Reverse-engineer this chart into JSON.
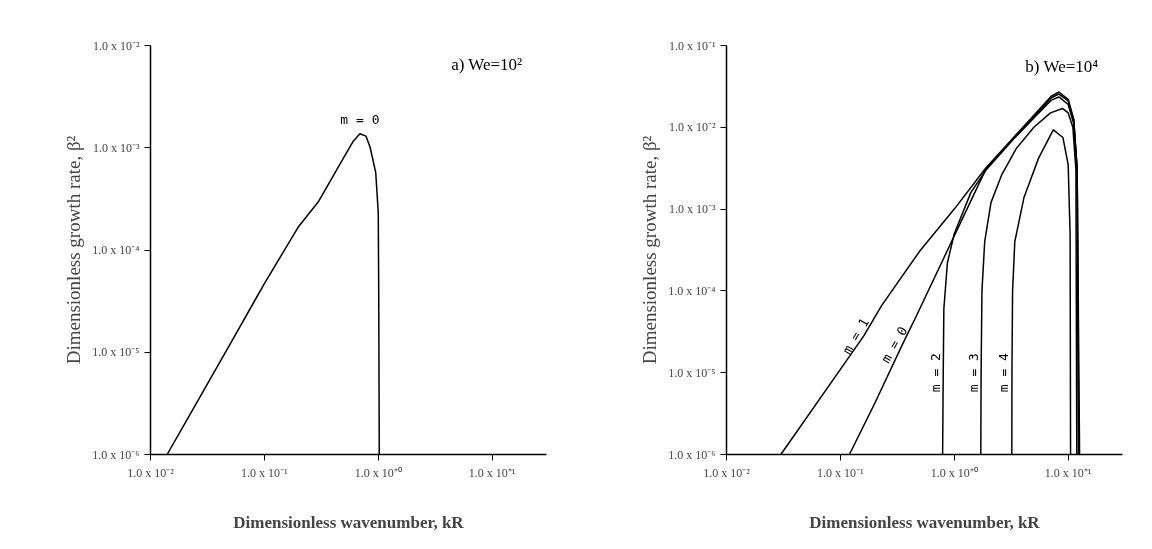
{
  "chart_data": [
    {
      "type": "line",
      "title": "a) We=10²",
      "xlabel": "Dimensionless wavenumber, kR",
      "ylabel": "Dimensionless growth rate, β²",
      "log": "xy",
      "grid": false,
      "line_style": "solid",
      "marker": "none",
      "xlim": [
        0.01,
        30
      ],
      "ylim": [
        1e-06,
        0.01
      ],
      "xticks": [
        {
          "value": 0.01,
          "label": "1.0 x 10⁻²"
        },
        {
          "value": 0.1,
          "label": "1.0 x 10⁻¹"
        },
        {
          "value": 1,
          "label": "1.0 x 10⁺⁰"
        },
        {
          "value": 10,
          "label": "1.0 x 10⁺¹"
        }
      ],
      "yticks": [
        {
          "value": 1e-06,
          "label": "1.0 x 10⁻⁶"
        },
        {
          "value": 1e-05,
          "label": "1.0 x 10⁻⁵"
        },
        {
          "value": 0.0001,
          "label": "1.0 x 10⁻⁴"
        },
        {
          "value": 0.001,
          "label": "1.0 x 10⁻³"
        },
        {
          "value": 0.01,
          "label": "1.0 x 10⁻²"
        }
      ],
      "series": [
        {
          "color": "#000000",
          "x": [
            0.014,
            0.02,
            0.05,
            0.1,
            0.2,
            0.3,
            0.5,
            0.6,
            0.69,
            0.78,
            0.85,
            0.95,
            1.0,
            1.01,
            1.02
          ],
          "values": [
            1e-06,
            2e-06,
            1.2e-05,
            4.7e-05,
            0.00017,
            0.0003,
            0.00081,
            0.00115,
            0.00137,
            0.0013,
            0.001,
            0.00057,
            0.00023,
            3e-05,
            1e-06
          ]
        }
      ],
      "annotations": [
        {
          "text": "m = 0",
          "x": 0.69,
          "y": 0.00137
        }
      ]
    },
    {
      "type": "line",
      "title": "b) We=10⁴",
      "xlabel": "Dimensionless wavenumber, kR",
      "ylabel": "Dimensionless growth rate, β²",
      "log": "xy",
      "grid": false,
      "line_style": "solid",
      "marker": "none",
      "xlim": [
        0.01,
        30
      ],
      "ylim": [
        1e-06,
        0.1
      ],
      "xticks": [
        {
          "value": 0.01,
          "label": "1.0 x 10⁻²"
        },
        {
          "value": 0.1,
          "label": "1.0 x 10⁻¹"
        },
        {
          "value": 1,
          "label": "1.0 x 10⁺⁰"
        },
        {
          "value": 10,
          "label": "1.0 x 10⁺¹"
        }
      ],
      "yticks": [
        {
          "value": 1e-06,
          "label": "1.0 x 10⁻⁶"
        },
        {
          "value": 1e-05,
          "label": "1.0 x 10⁻⁵"
        },
        {
          "value": 0.0001,
          "label": "1.0 x 10⁻⁴"
        },
        {
          "value": 0.001,
          "label": "1.0 x 10⁻³"
        },
        {
          "value": 0.01,
          "label": "1.0 x 10⁻²"
        },
        {
          "value": 0.1,
          "label": "1.0 x 10⁻¹"
        }
      ],
      "series": [
        {
          "color": "#000000",
          "x": [
            0.03,
            0.1,
            0.16,
            0.23,
            0.5,
            1.0,
            1.9,
            3.2,
            5.0,
            7.1,
            8.3,
            10,
            11.2,
            12,
            12.6
          ],
          "values": [
            1e-06,
            1.1e-05,
            2.8e-05,
            6.6e-05,
            0.00031,
            0.001,
            0.0032,
            0.0071,
            0.014,
            0.024,
            0.027,
            0.022,
            0.0126,
            0.003,
            1e-06
          ]
        },
        {
          "color": "#000000",
          "x": [
            0.12,
            0.2,
            0.35,
            0.46,
            1.0,
            1.9,
            3.2,
            5.0,
            7.1,
            8.3,
            10,
            11.2,
            12,
            12.4
          ],
          "values": [
            1e-06,
            4.2e-06,
            2.2e-05,
            4.8e-05,
            0.00047,
            0.0031,
            0.007,
            0.0135,
            0.023,
            0.0255,
            0.021,
            0.012,
            0.003,
            1e-06
          ]
        },
        {
          "color": "#000000",
          "x": [
            0.79,
            0.8,
            0.81,
            0.87,
            1.0,
            1.4,
            1.9,
            3.2,
            5.0,
            7.1,
            8.3,
            10,
            11.2,
            12,
            12.3
          ],
          "values": [
            1e-06,
            1e-05,
            6e-05,
            0.00022,
            0.0005,
            0.0016,
            0.003,
            0.0068,
            0.013,
            0.0215,
            0.0235,
            0.019,
            0.011,
            0.003,
            1e-06
          ]
        },
        {
          "color": "#000000",
          "x": [
            1.71,
            1.72,
            1.75,
            1.85,
            2.1,
            2.6,
            3.5,
            5.0,
            7.0,
            8.9,
            10,
            11,
            11.7,
            11.9
          ],
          "values": [
            1e-06,
            1e-05,
            0.0001,
            0.0004,
            0.0012,
            0.0026,
            0.0055,
            0.01,
            0.015,
            0.017,
            0.015,
            0.01,
            0.003,
            1e-06
          ]
        },
        {
          "color": "#000000",
          "x": [
            3.2,
            3.21,
            3.25,
            3.4,
            4.1,
            5.5,
            7.4,
            9.0,
            10,
            10.4,
            10.5
          ],
          "values": [
            1e-06,
            1e-05,
            0.0001,
            0.0004,
            0.0014,
            0.0042,
            0.0093,
            0.0075,
            0.0035,
            0.0005,
            1e-06
          ]
        }
      ],
      "annotations": [
        {
          "text": "m = 1",
          "x": 0.16,
          "y": 2.8e-05
        },
        {
          "text": "m = 0",
          "x": 0.35,
          "y": 2.2e-05
        },
        {
          "text": "m = 2",
          "x": 0.8,
          "y": 1e-05
        },
        {
          "text": "m = 3",
          "x": 1.72,
          "y": 1e-05
        },
        {
          "text": "m = 4",
          "x": 3.21,
          "y": 1e-05
        }
      ]
    }
  ]
}
